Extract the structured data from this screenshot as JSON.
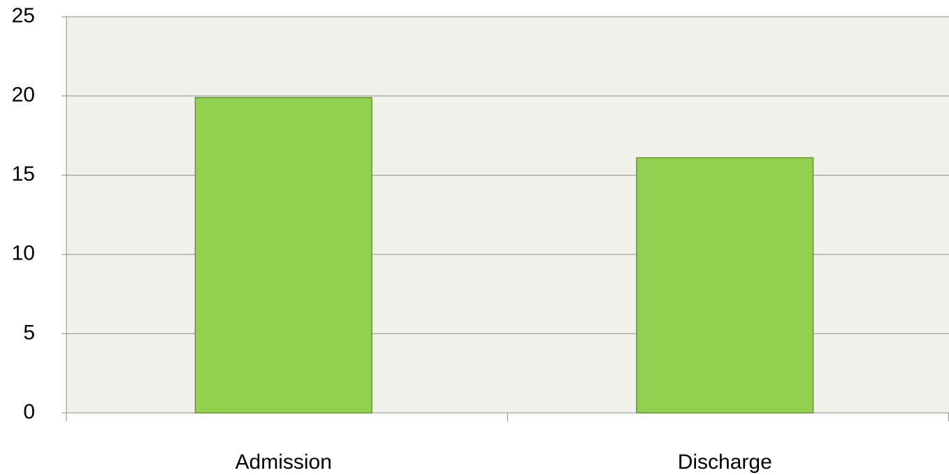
{
  "chart_data": {
    "type": "bar",
    "categories": [
      "Admission",
      "Discharge"
    ],
    "values": [
      19.9,
      16.1
    ],
    "color": "#92d050",
    "ylim": [
      0,
      25
    ],
    "yticks": [
      0,
      5,
      10,
      15,
      20,
      25
    ],
    "grid": true
  }
}
